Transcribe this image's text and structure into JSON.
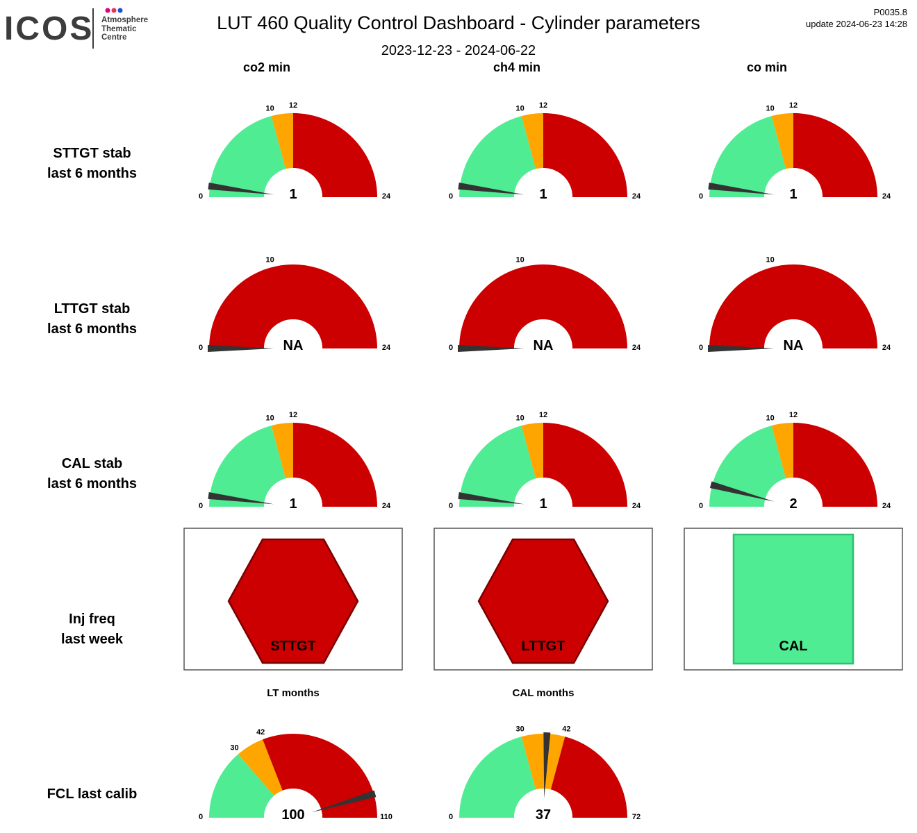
{
  "header": {
    "logo": {
      "main": "ICOS",
      "lines": [
        "Atmosphere",
        "Thematic",
        "Centre"
      ],
      "dot_colors": [
        "#e2007a",
        "#e2375a",
        "#1e4fd8"
      ]
    },
    "title": "LUT 460 Quality Control Dashboard - Cylinder parameters",
    "date_range": "2023-12-23 - 2024-06-22",
    "version": "P0035.8",
    "update": "update  2024-06-23 14:28"
  },
  "colors": {
    "green": "#4fec93",
    "orange": "#ffa500",
    "red": "#cc0000",
    "needle": "#333333"
  },
  "columns": [
    "co2 min",
    "ch4 min",
    "co min"
  ],
  "rows": [
    {
      "lines": [
        "STTGT stab",
        "last 6 months"
      ]
    },
    {
      "lines": [
        "LTTGT stab",
        "last 6 months"
      ]
    },
    {
      "lines": [
        "CAL stab",
        "last 6 months"
      ]
    },
    {
      "lines": [
        "Inj freq",
        "last week"
      ]
    },
    {
      "lines": [
        "FCL last calib"
      ]
    }
  ],
  "chart_data": [
    {
      "type": "gauge",
      "row": 0,
      "col": 0,
      "min": 0,
      "max": 24,
      "bands": [
        [
          0,
          10,
          "green"
        ],
        [
          10,
          12,
          "orange"
        ],
        [
          12,
          24,
          "red"
        ]
      ],
      "ticks": [
        0,
        10,
        12,
        24
      ],
      "value": 1,
      "value_label": "1"
    },
    {
      "type": "gauge",
      "row": 0,
      "col": 1,
      "min": 0,
      "max": 24,
      "bands": [
        [
          0,
          10,
          "green"
        ],
        [
          10,
          12,
          "orange"
        ],
        [
          12,
          24,
          "red"
        ]
      ],
      "ticks": [
        0,
        10,
        12,
        24
      ],
      "value": 1,
      "value_label": "1"
    },
    {
      "type": "gauge",
      "row": 0,
      "col": 2,
      "min": 0,
      "max": 24,
      "bands": [
        [
          0,
          10,
          "green"
        ],
        [
          10,
          12,
          "orange"
        ],
        [
          12,
          24,
          "red"
        ]
      ],
      "ticks": [
        0,
        10,
        12,
        24
      ],
      "value": 1,
      "value_label": "1"
    },
    {
      "type": "gauge",
      "row": 1,
      "col": 0,
      "min": 0,
      "max": 24,
      "bands": [
        [
          0,
          24,
          "red"
        ]
      ],
      "ticks": [
        0,
        10,
        24
      ],
      "value": 0,
      "value_label": "NA"
    },
    {
      "type": "gauge",
      "row": 1,
      "col": 1,
      "min": 0,
      "max": 24,
      "bands": [
        [
          0,
          24,
          "red"
        ]
      ],
      "ticks": [
        0,
        10,
        24
      ],
      "value": 0,
      "value_label": "NA"
    },
    {
      "type": "gauge",
      "row": 1,
      "col": 2,
      "min": 0,
      "max": 24,
      "bands": [
        [
          0,
          24,
          "red"
        ]
      ],
      "ticks": [
        0,
        10,
        24
      ],
      "value": 0,
      "value_label": "NA"
    },
    {
      "type": "gauge",
      "row": 2,
      "col": 0,
      "min": 0,
      "max": 24,
      "bands": [
        [
          0,
          10,
          "green"
        ],
        [
          10,
          12,
          "orange"
        ],
        [
          12,
          24,
          "red"
        ]
      ],
      "ticks": [
        0,
        10,
        12,
        24
      ],
      "value": 1,
      "value_label": "1"
    },
    {
      "type": "gauge",
      "row": 2,
      "col": 1,
      "min": 0,
      "max": 24,
      "bands": [
        [
          0,
          10,
          "green"
        ],
        [
          10,
          12,
          "orange"
        ],
        [
          12,
          24,
          "red"
        ]
      ],
      "ticks": [
        0,
        10,
        12,
        24
      ],
      "value": 1,
      "value_label": "1"
    },
    {
      "type": "gauge",
      "row": 2,
      "col": 2,
      "min": 0,
      "max": 24,
      "bands": [
        [
          0,
          10,
          "green"
        ],
        [
          10,
          12,
          "orange"
        ],
        [
          12,
          24,
          "red"
        ]
      ],
      "ticks": [
        0,
        10,
        12,
        24
      ],
      "value": 2,
      "value_label": "2"
    },
    {
      "type": "status",
      "row": 3,
      "col": 0,
      "shape": "hexagon",
      "status": "red",
      "label": "STTGT"
    },
    {
      "type": "status",
      "row": 3,
      "col": 1,
      "shape": "hexagon",
      "status": "red",
      "label": "LTTGT"
    },
    {
      "type": "status",
      "row": 3,
      "col": 2,
      "shape": "square",
      "status": "green",
      "label": "CAL"
    },
    {
      "type": "gauge",
      "row": 4,
      "col": 0,
      "title": "LT months",
      "min": 0,
      "max": 110,
      "bands": [
        [
          0,
          30,
          "green"
        ],
        [
          30,
          42,
          "orange"
        ],
        [
          42,
          110,
          "red"
        ]
      ],
      "ticks": [
        0,
        30,
        42,
        110
      ],
      "value": 100,
      "value_label": "100"
    },
    {
      "type": "gauge",
      "row": 4,
      "col": 1,
      "title": "CAL months",
      "min": 0,
      "max": 72,
      "bands": [
        [
          0,
          30,
          "green"
        ],
        [
          30,
          42,
          "orange"
        ],
        [
          42,
          72,
          "red"
        ]
      ],
      "ticks": [
        0,
        30,
        42,
        72
      ],
      "value": 37,
      "value_label": "37"
    }
  ]
}
